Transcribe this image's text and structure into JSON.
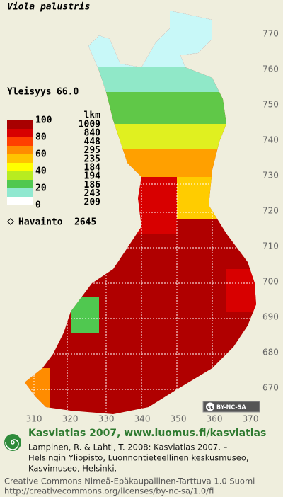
{
  "title": "Viola palustris",
  "frequency": {
    "label": "Yleisyys",
    "value": "66.0"
  },
  "legend": {
    "scale_labels": [
      100,
      80,
      60,
      40,
      20,
      0
    ],
    "count_header": "lkm",
    "counts": [
      1009,
      840,
      448,
      295,
      235,
      184,
      194,
      186,
      243,
      209
    ],
    "colors": [
      "#a80000",
      "#d80000",
      "#ff4000",
      "#ff8c00",
      "#ffc400",
      "#ffff00",
      "#b8ec20",
      "#50c850",
      "#90e8d0",
      "#ffffff"
    ]
  },
  "observations": {
    "label": "Havainto",
    "value": 2645
  },
  "grid_labels": {
    "north": [
      770,
      760,
      750,
      740,
      730,
      720,
      710,
      700,
      690,
      680,
      670
    ],
    "east": [
      310,
      320,
      330,
      340,
      350,
      360,
      370
    ]
  },
  "badge": {
    "icon": "cc",
    "text": "BY-NC-SA"
  },
  "footer": {
    "heading": "Kasviatlas 2007, www.luomus.fi/kasviatlas",
    "citation": [
      "Lampinen, R. & Lahti, T. 2008: Kasviatlas 2007. –",
      "Helsingin Yliopisto, Luonnontieteellinen keskusmuseo,",
      "Kasvimuseo, Helsinki."
    ],
    "license": [
      "Creative Commons Nimeä-Epäkaupallinen-Tarttuva 1.0 Suomi",
      "http://creativecommons.org/licenses/by-nc-sa/1.0/fi"
    ]
  }
}
